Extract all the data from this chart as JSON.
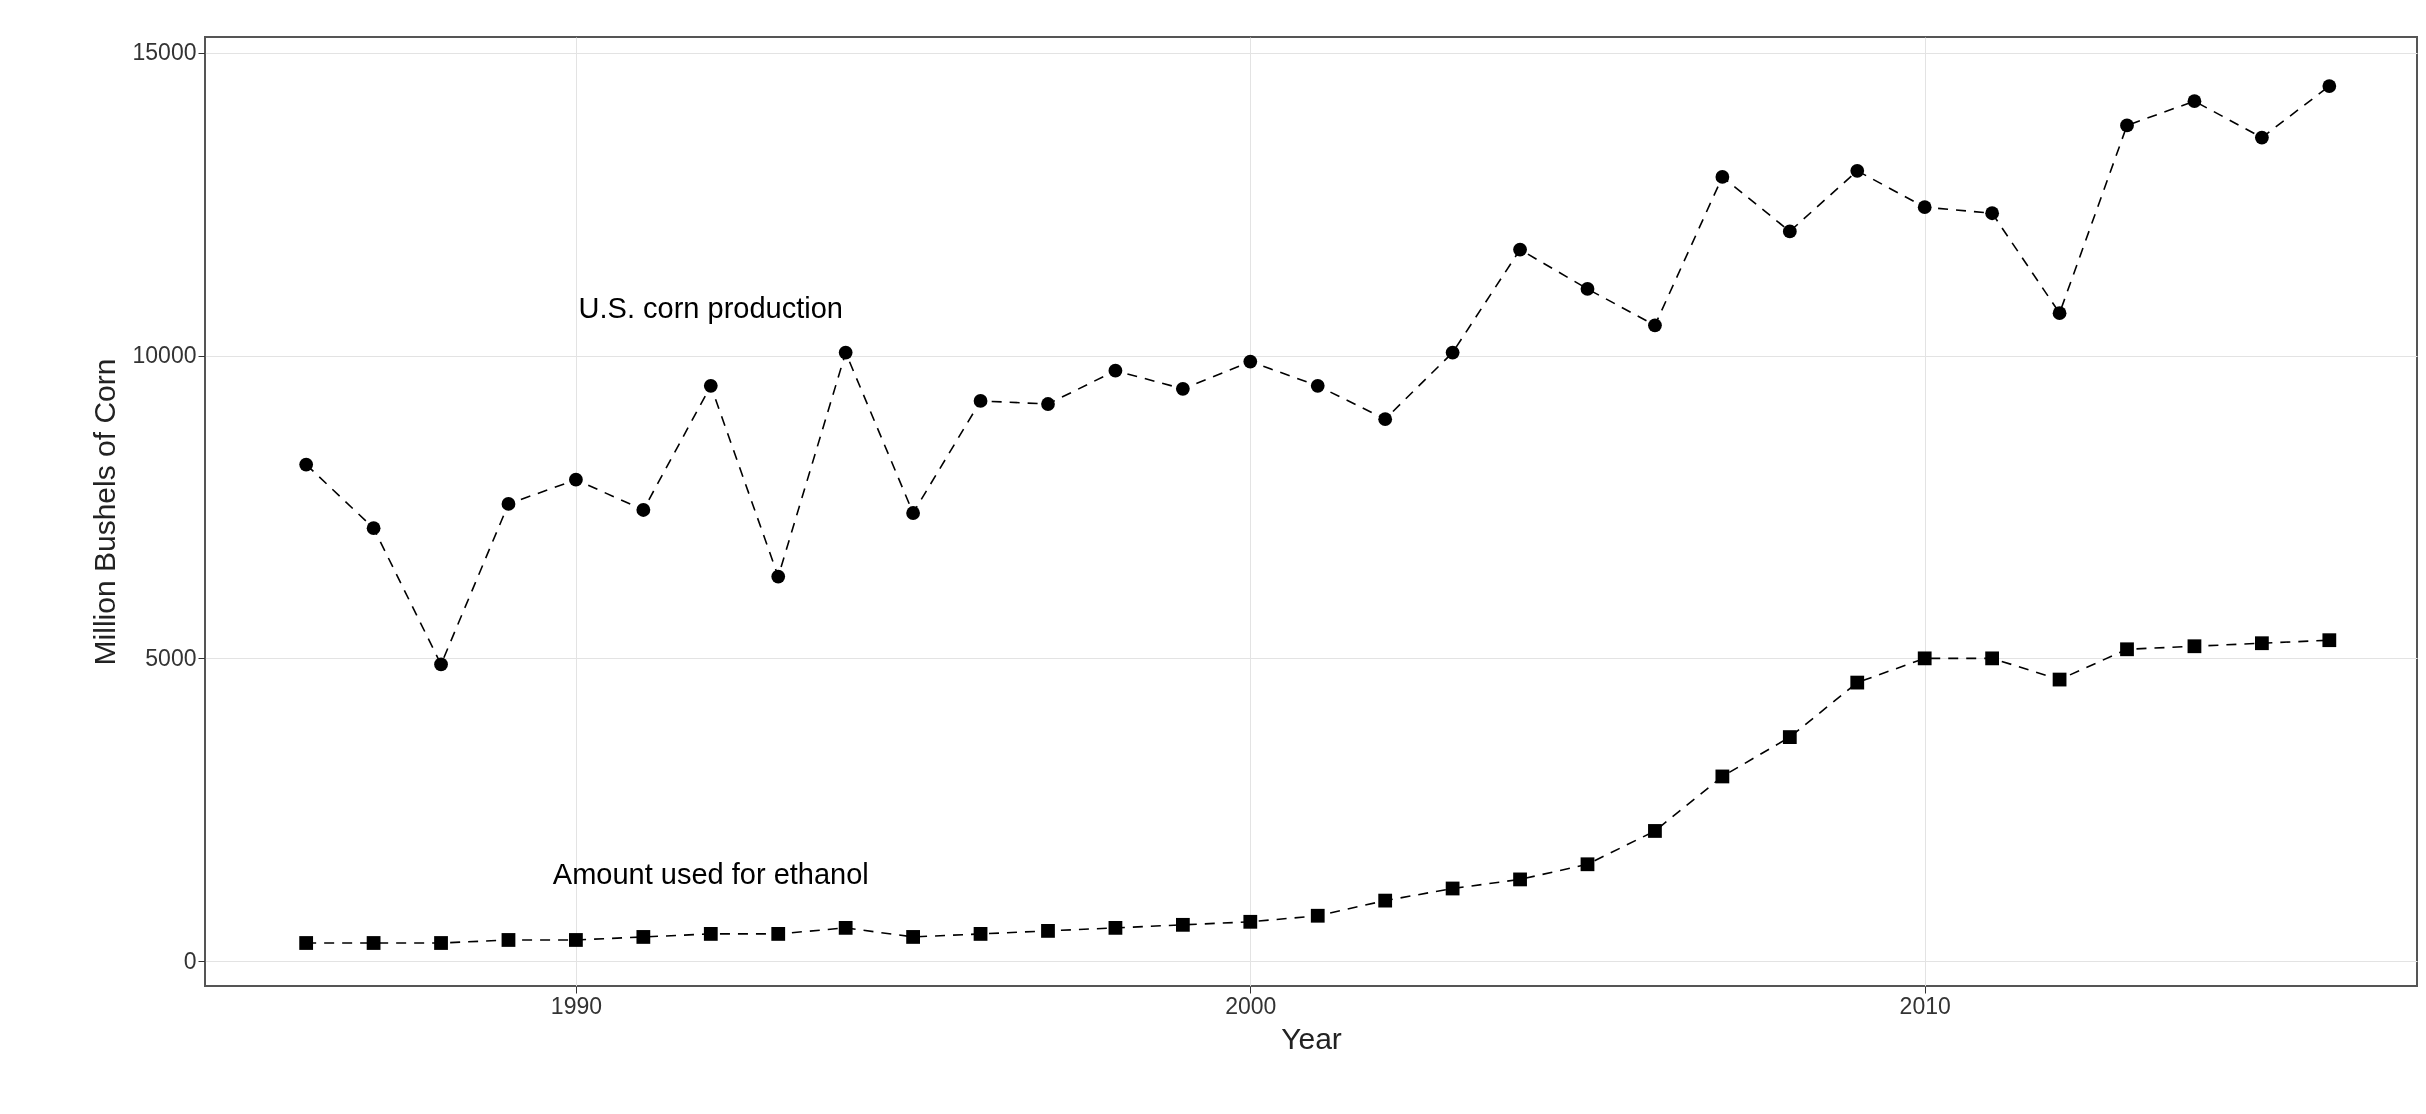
{
  "chart_data": {
    "type": "line",
    "xlabel": "Year",
    "ylabel": "Million Bushels of Corn",
    "x": [
      1986,
      1987,
      1988,
      1989,
      1990,
      1991,
      1992,
      1993,
      1994,
      1995,
      1996,
      1997,
      1998,
      1999,
      2000,
      2001,
      2002,
      2003,
      2004,
      2005,
      2006,
      2007,
      2008,
      2009,
      2010,
      2011,
      2012,
      2013,
      2014,
      2015,
      2016
    ],
    "series": [
      {
        "name": "U.S. corn production",
        "color": "#000000",
        "marker": "circle",
        "values": [
          8200,
          7150,
          4900,
          7550,
          7950,
          7450,
          9500,
          6350,
          10050,
          7400,
          9250,
          9200,
          9750,
          9450,
          9900,
          9500,
          8950,
          10050,
          11750,
          11100,
          10500,
          12950,
          12050,
          13050,
          12450,
          12350,
          10700,
          13800,
          14200,
          13600,
          14450
        ]
      },
      {
        "name": "Amount used for ethanol",
        "color": "#000000",
        "marker": "square",
        "values": [
          300,
          300,
          300,
          350,
          350,
          400,
          450,
          450,
          550,
          400,
          450,
          500,
          550,
          600,
          650,
          750,
          1000,
          1200,
          1350,
          1600,
          2150,
          3050,
          3700,
          4600,
          5000,
          5000,
          4650,
          5150,
          5200,
          5250,
          5300
        ]
      }
    ],
    "line_style": "dashed",
    "grid": true,
    "xlim": [
      1984.5,
      2017.3
    ],
    "xticks": [
      1990,
      2000,
      2010
    ],
    "ylim": [
      -410,
      15260
    ],
    "yticks": [
      0,
      5000,
      10000,
      15000
    ]
  }
}
